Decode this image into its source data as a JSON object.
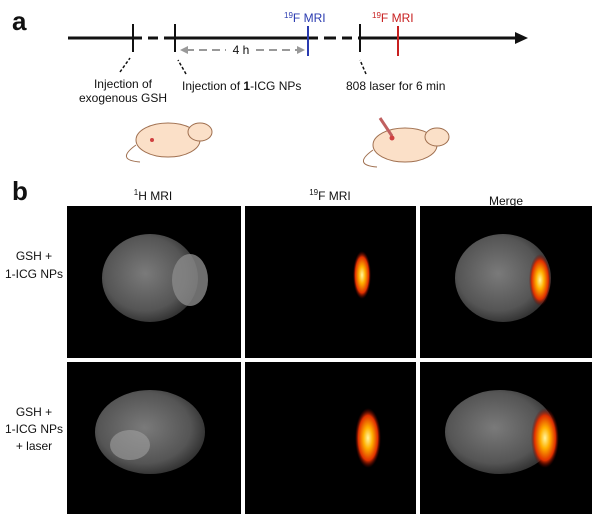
{
  "panel_a": {
    "label": "a",
    "mri_1": {
      "sup": "19",
      "text": "F MRI"
    },
    "mri_2": {
      "sup": "19",
      "text": "F MRI"
    },
    "interval": "4 h",
    "gsh_injection": [
      "Injection of",
      "exogenous GSH"
    ],
    "np_injection": [
      "Injection of ",
      "1",
      "-ICG NPs"
    ],
    "laser": "808 laser for 6 min"
  },
  "panel_b": {
    "label": "b",
    "columns": [
      {
        "sup": "1",
        "text": "H MRI"
      },
      {
        "sup": "19",
        "text": "F MRI"
      },
      {
        "sup": "",
        "text": "Merge"
      }
    ],
    "rows": [
      [
        "GSH +",
        "1-ICG NPs"
      ],
      [
        "GSH +",
        "1-ICG NPs",
        "+ laser"
      ]
    ]
  }
}
